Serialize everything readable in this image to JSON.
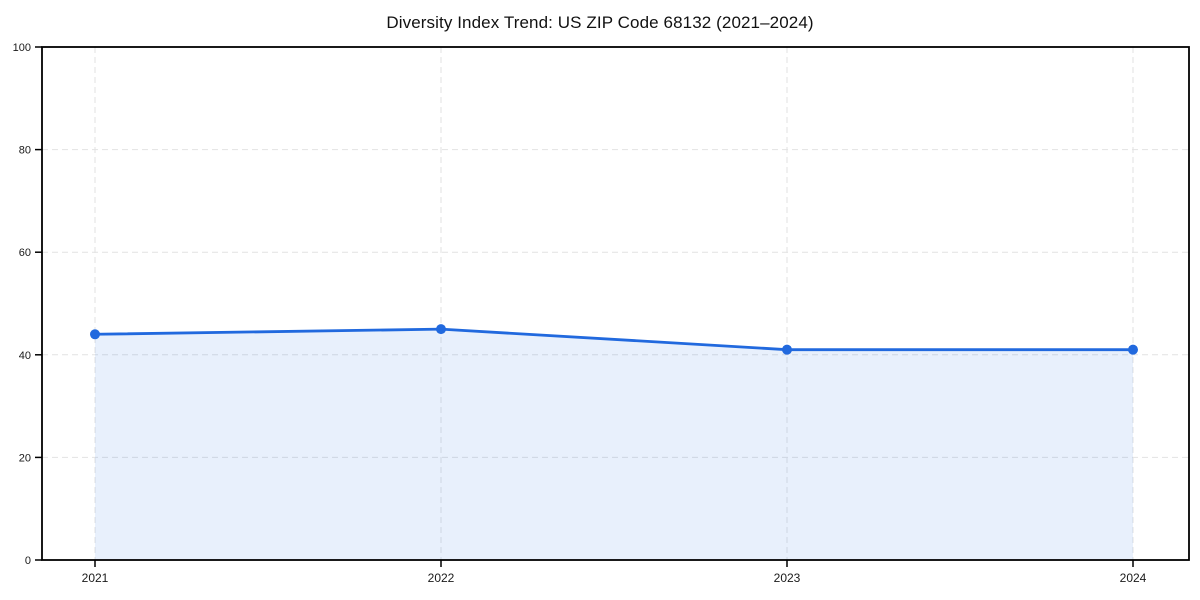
{
  "chart_data": {
    "type": "area",
    "title": "Diversity Index Trend: US ZIP Code 68132 (2021–2024)",
    "categories": [
      "2021",
      "2022",
      "2023",
      "2024"
    ],
    "series": [
      {
        "name": "Diversity Index",
        "values": [
          44,
          45,
          41,
          41
        ]
      }
    ],
    "xlabel": "",
    "ylabel": "",
    "ylim": [
      0,
      100
    ],
    "y_ticks": [
      0,
      20,
      40,
      60,
      80,
      100
    ],
    "grid": true,
    "grid_style": "dashed",
    "legend": false,
    "marker": "circle",
    "colors": {
      "line": "#2169de",
      "marker": "#2169de",
      "fill": "rgba(33, 105, 222, 0.10)",
      "grid": "#e2e2e2",
      "spine": "#000000",
      "text": "#1a1a1a",
      "background": "#ffffff"
    }
  }
}
